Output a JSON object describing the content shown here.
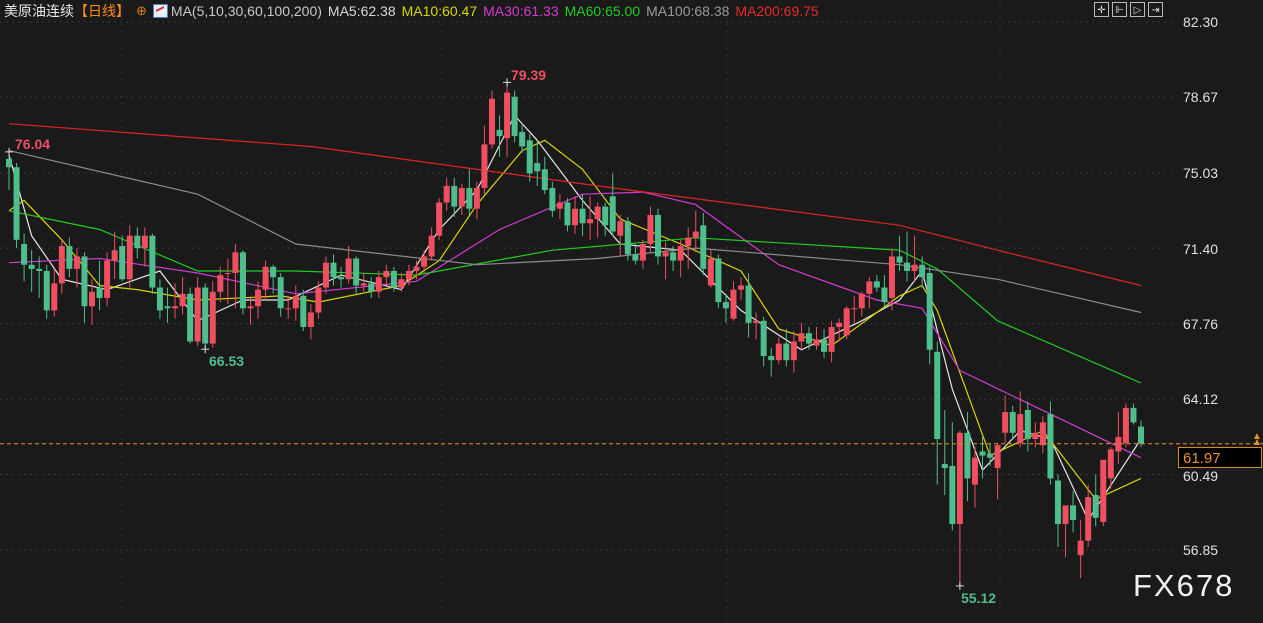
{
  "header": {
    "title": "美原油连续",
    "period": "【日线】",
    "ma_definition": "MA(5,10,30,60,100,200)",
    "ma_values": [
      {
        "label": "MA5:62.38",
        "color": "#e6e6e6"
      },
      {
        "label": "MA10:60.47",
        "color": "#d6d600"
      },
      {
        "label": "MA30:61.33",
        "color": "#d23cd2"
      },
      {
        "label": "MA60:65.00",
        "color": "#22cc22"
      },
      {
        "label": "MA100:68.38",
        "color": "#9a9a9a"
      },
      {
        "label": "MA200:69.75",
        "color": "#e52a2a"
      }
    ]
  },
  "toolbar": {
    "icons": [
      "crosshair-icon",
      "zoom-in-icon",
      "step-forward-icon",
      "jump-to-latest-icon"
    ]
  },
  "watermark": "FX678",
  "chart_data": {
    "type": "candlestick",
    "y_ticks": [
      "82.30",
      "78.67",
      "75.03",
      "71.40",
      "67.76",
      "64.12",
      "60.49",
      "56.85"
    ],
    "ylim": [
      55.0,
      82.3
    ],
    "grid": true,
    "current_price": "61.97",
    "colors": {
      "up": "#ef4f5f",
      "down": "#4ebf8c",
      "current_line": "#e8912c"
    },
    "annotations": [
      {
        "label": "76.04",
        "value": 76.04,
        "candle": 0,
        "kind": "high"
      },
      {
        "label": "66.53",
        "value": 66.53,
        "candle": 26,
        "kind": "low"
      },
      {
        "label": "79.39",
        "value": 79.39,
        "candle": 66,
        "kind": "high"
      },
      {
        "label": "55.12",
        "value": 55.12,
        "candle": 126,
        "kind": "low"
      }
    ],
    "candles_ohlc": [
      [
        75.7,
        76.04,
        74.2,
        75.3
      ],
      [
        75.3,
        75.5,
        71.4,
        71.8
      ],
      [
        71.6,
        72.1,
        69.8,
        70.6
      ],
      [
        70.6,
        71.3,
        69.3,
        70.4
      ],
      [
        70.4,
        71.0,
        69.0,
        70.3
      ],
      [
        70.3,
        70.6,
        68.0,
        68.4
      ],
      [
        68.4,
        70.4,
        68.1,
        69.7
      ],
      [
        69.7,
        71.8,
        69.2,
        71.5
      ],
      [
        71.5,
        71.9,
        70.0,
        70.4
      ],
      [
        70.4,
        71.4,
        69.5,
        71.0
      ],
      [
        71.0,
        71.2,
        67.8,
        68.6
      ],
      [
        68.6,
        69.9,
        67.7,
        69.3
      ],
      [
        69.5,
        70.8,
        68.4,
        69.0
      ],
      [
        69.0,
        71.2,
        68.6,
        70.8
      ],
      [
        70.8,
        72.2,
        69.9,
        71.3
      ],
      [
        71.5,
        72.0,
        69.8,
        69.9
      ],
      [
        69.9,
        72.5,
        69.5,
        72.0
      ],
      [
        72.0,
        72.4,
        70.9,
        71.4
      ],
      [
        71.4,
        72.4,
        70.5,
        72.0
      ],
      [
        72.0,
        72.1,
        69.2,
        69.5
      ],
      [
        69.5,
        69.9,
        68.0,
        68.4
      ],
      [
        68.6,
        69.5,
        67.8,
        68.5
      ],
      [
        68.5,
        69.7,
        68.0,
        68.6
      ],
      [
        68.6,
        70.0,
        68.2,
        69.2
      ],
      [
        69.2,
        69.5,
        66.8,
        66.9
      ],
      [
        66.9,
        70.0,
        66.7,
        69.5
      ],
      [
        69.5,
        69.7,
        66.53,
        66.8
      ],
      [
        66.8,
        69.8,
        66.6,
        69.3
      ],
      [
        69.3,
        70.5,
        68.8,
        70.1
      ],
      [
        70.2,
        70.9,
        68.7,
        70.2
      ],
      [
        70.2,
        71.6,
        68.5,
        71.2
      ],
      [
        71.2,
        71.3,
        68.2,
        68.5
      ],
      [
        68.5,
        69.0,
        67.7,
        68.6
      ],
      [
        68.6,
        69.8,
        68.0,
        69.4
      ],
      [
        69.4,
        70.8,
        68.9,
        70.5
      ],
      [
        70.5,
        70.6,
        69.2,
        70.0
      ],
      [
        70.0,
        70.2,
        68.1,
        68.5
      ],
      [
        68.5,
        69.1,
        68.0,
        68.5
      ],
      [
        68.5,
        69.6,
        67.9,
        69.1
      ],
      [
        69.1,
        69.4,
        67.4,
        67.6
      ],
      [
        67.6,
        68.7,
        67.0,
        68.3
      ],
      [
        68.3,
        69.8,
        68.0,
        69.5
      ],
      [
        69.5,
        71.0,
        69.2,
        70.7
      ],
      [
        70.7,
        71.1,
        69.6,
        70.0
      ],
      [
        70.0,
        70.5,
        69.5,
        69.9
      ],
      [
        69.9,
        71.5,
        69.7,
        70.9
      ],
      [
        70.9,
        71.0,
        69.2,
        69.6
      ],
      [
        69.6,
        70.2,
        69.3,
        69.7
      ],
      [
        69.7,
        70.0,
        69.0,
        69.3
      ],
      [
        69.3,
        70.3,
        69.0,
        70.0
      ],
      [
        70.0,
        70.6,
        69.6,
        70.3
      ],
      [
        70.3,
        70.5,
        69.3,
        69.5
      ],
      [
        69.5,
        70.2,
        69.3,
        69.9
      ],
      [
        69.9,
        70.6,
        69.6,
        70.3
      ],
      [
        70.3,
        70.8,
        69.9,
        70.5
      ],
      [
        70.5,
        71.3,
        70.2,
        71.0
      ],
      [
        71.0,
        72.4,
        70.8,
        72.0
      ],
      [
        72.0,
        73.8,
        71.8,
        73.6
      ],
      [
        73.6,
        74.8,
        73.2,
        74.4
      ],
      [
        74.4,
        74.8,
        72.9,
        73.4
      ],
      [
        73.4,
        74.5,
        73.0,
        74.3
      ],
      [
        74.3,
        75.2,
        73.0,
        73.3
      ],
      [
        73.3,
        74.6,
        72.8,
        74.3
      ],
      [
        74.3,
        77.3,
        74.0,
        76.4
      ],
      [
        76.4,
        79.0,
        76.2,
        78.6
      ],
      [
        77.1,
        77.8,
        75.8,
        76.8
      ],
      [
        76.7,
        79.39,
        75.8,
        78.9
      ],
      [
        78.7,
        79.0,
        76.5,
        76.8
      ],
      [
        77.0,
        77.4,
        76.0,
        76.3
      ],
      [
        76.6,
        76.9,
        74.6,
        75.0
      ],
      [
        75.5,
        76.6,
        74.4,
        75.1
      ],
      [
        75.2,
        75.8,
        74.0,
        74.2
      ],
      [
        74.3,
        74.6,
        72.9,
        73.2
      ],
      [
        73.3,
        74.0,
        72.8,
        73.6
      ],
      [
        73.6,
        73.8,
        72.2,
        72.5
      ],
      [
        72.5,
        73.9,
        72.1,
        73.3
      ],
      [
        73.3,
        74.0,
        72.0,
        72.6
      ],
      [
        72.6,
        73.9,
        71.8,
        72.8
      ],
      [
        72.8,
        73.6,
        71.9,
        73.4
      ],
      [
        73.4,
        73.6,
        72.0,
        72.5
      ],
      [
        73.9,
        75.0,
        72.0,
        72.2
      ],
      [
        72.0,
        73.0,
        71.0,
        72.7
      ],
      [
        72.7,
        72.9,
        70.8,
        71.1
      ],
      [
        71.1,
        71.6,
        70.6,
        70.8
      ],
      [
        70.8,
        71.8,
        70.4,
        71.6
      ],
      [
        71.6,
        73.4,
        71.2,
        73.0
      ],
      [
        73.0,
        73.3,
        70.6,
        71.0
      ],
      [
        71.0,
        71.7,
        69.9,
        71.2
      ],
      [
        71.2,
        71.5,
        70.3,
        70.8
      ],
      [
        70.8,
        71.8,
        70.0,
        71.5
      ],
      [
        71.5,
        72.4,
        70.4,
        71.9
      ],
      [
        71.9,
        73.2,
        71.2,
        72.2
      ],
      [
        72.5,
        73.1,
        70.1,
        70.4
      ],
      [
        69.6,
        71.3,
        69.5,
        70.9
      ],
      [
        70.9,
        71.1,
        68.5,
        68.8
      ],
      [
        68.8,
        69.2,
        67.8,
        68.5
      ],
      [
        68.0,
        69.8,
        67.9,
        69.4
      ],
      [
        69.4,
        70.0,
        68.9,
        69.6
      ],
      [
        69.6,
        70.2,
        67.1,
        67.8
      ],
      [
        67.8,
        68.3,
        67.0,
        67.9
      ],
      [
        67.9,
        68.1,
        65.7,
        66.2
      ],
      [
        66.2,
        66.6,
        65.2,
        66.0
      ],
      [
        66.0,
        67.1,
        65.8,
        66.8
      ],
      [
        66.8,
        67.5,
        65.7,
        66.0
      ],
      [
        66.0,
        67.4,
        65.4,
        66.9
      ],
      [
        66.9,
        67.8,
        66.5,
        67.3
      ],
      [
        67.3,
        67.6,
        66.5,
        66.8
      ],
      [
        66.7,
        67.6,
        66.5,
        67.0
      ],
      [
        67.0,
        67.5,
        66.1,
        66.4
      ],
      [
        66.4,
        67.9,
        65.9,
        67.6
      ],
      [
        67.6,
        68.0,
        66.9,
        67.8
      ],
      [
        67.2,
        68.6,
        67.0,
        68.5
      ],
      [
        68.5,
        69.1,
        67.8,
        68.5
      ],
      [
        68.5,
        69.3,
        68.1,
        69.2
      ],
      [
        69.2,
        70.0,
        68.5,
        69.8
      ],
      [
        69.8,
        70.1,
        69.3,
        69.5
      ],
      [
        69.5,
        70.1,
        68.6,
        68.8
      ],
      [
        69.0,
        71.4,
        68.4,
        71.0
      ],
      [
        71.0,
        72.0,
        70.3,
        70.7
      ],
      [
        70.7,
        72.2,
        69.8,
        70.3
      ],
      [
        70.3,
        72.0,
        69.8,
        70.6
      ],
      [
        70.6,
        71.0,
        69.5,
        70.0
      ],
      [
        70.2,
        70.5,
        65.8,
        66.5
      ],
      [
        66.4,
        66.9,
        60.0,
        62.2
      ],
      [
        61.0,
        63.6,
        59.5,
        60.8
      ],
      [
        60.9,
        63.0,
        57.8,
        58.1
      ],
      [
        58.1,
        62.6,
        55.12,
        62.5
      ],
      [
        62.5,
        63.5,
        59.2,
        60.3
      ],
      [
        60.0,
        61.8,
        58.9,
        61.3
      ],
      [
        61.6,
        62.3,
        60.3,
        61.4
      ],
      [
        61.5,
        62.0,
        60.9,
        61.3
      ],
      [
        60.8,
        62.0,
        59.3,
        61.9
      ],
      [
        62.5,
        64.3,
        62.0,
        63.5
      ],
      [
        63.5,
        63.8,
        62.2,
        62.5
      ],
      [
        62.0,
        64.5,
        61.8,
        63.4
      ],
      [
        63.6,
        64.0,
        61.6,
        62.2
      ],
      [
        62.2,
        63.0,
        61.8,
        62.5
      ],
      [
        61.9,
        63.3,
        61.5,
        63.0
      ],
      [
        63.4,
        64.0,
        60.0,
        60.3
      ],
      [
        60.2,
        60.5,
        57.0,
        58.1
      ],
      [
        58.1,
        59.0,
        56.5,
        59.0
      ],
      [
        59.0,
        59.7,
        57.7,
        58.3
      ],
      [
        56.6,
        58.3,
        55.5,
        57.3
      ],
      [
        57.3,
        60.0,
        57.0,
        59.4
      ],
      [
        59.5,
        60.5,
        58.0,
        58.4
      ],
      [
        58.2,
        61.0,
        58.0,
        61.2
      ],
      [
        60.3,
        61.8,
        59.8,
        61.7
      ],
      [
        61.6,
        63.5,
        61.0,
        62.3
      ],
      [
        62.0,
        63.9,
        61.8,
        63.7
      ],
      [
        63.7,
        63.9,
        62.9,
        63.0
      ],
      [
        62.8,
        63.1,
        61.8,
        61.97
      ]
    ],
    "moving_averages": [
      {
        "name": "MA5",
        "color": "#e6e6e6",
        "points": [
          [
            0,
            75.9
          ],
          [
            3,
            72.0
          ],
          [
            7,
            69.9
          ],
          [
            13,
            69.4
          ],
          [
            20,
            70.3
          ],
          [
            25,
            67.9
          ],
          [
            31,
            68.9
          ],
          [
            37,
            68.9
          ],
          [
            44,
            70.1
          ],
          [
            52,
            69.4
          ],
          [
            57,
            72.3
          ],
          [
            62,
            74.2
          ],
          [
            67,
            77.8
          ],
          [
            70,
            76.6
          ],
          [
            76,
            73.7
          ],
          [
            81,
            71.6
          ],
          [
            89,
            71.3
          ],
          [
            97,
            68.4
          ],
          [
            105,
            66.5
          ],
          [
            113,
            67.9
          ],
          [
            118,
            68.9
          ],
          [
            121,
            70.3
          ],
          [
            125,
            64.6
          ],
          [
            129,
            60.7
          ],
          [
            134,
            62.6
          ],
          [
            138,
            62.2
          ],
          [
            143,
            58.3
          ],
          [
            150,
            62.2
          ]
        ]
      },
      {
        "name": "MA10",
        "color": "#d6d600",
        "points": [
          [
            0,
            73.2
          ],
          [
            2,
            73.7
          ],
          [
            7,
            71.8
          ],
          [
            12,
            69.6
          ],
          [
            17,
            69.4
          ],
          [
            25,
            68.9
          ],
          [
            36,
            69.1
          ],
          [
            41,
            68.8
          ],
          [
            52,
            69.6
          ],
          [
            57,
            70.8
          ],
          [
            62,
            73.5
          ],
          [
            68,
            76.1
          ],
          [
            71,
            76.6
          ],
          [
            76,
            75.2
          ],
          [
            81,
            72.8
          ],
          [
            89,
            71.6
          ],
          [
            97,
            70.3
          ],
          [
            102,
            67.5
          ],
          [
            109,
            66.7
          ],
          [
            118,
            69.1
          ],
          [
            121,
            69.6
          ],
          [
            123,
            68.4
          ],
          [
            130,
            61.4
          ],
          [
            137,
            62.6
          ],
          [
            144,
            59.3
          ],
          [
            150,
            60.3
          ]
        ]
      },
      {
        "name": "MA30",
        "color": "#d23cd2",
        "points": [
          [
            0,
            70.7
          ],
          [
            12,
            70.9
          ],
          [
            25,
            70.2
          ],
          [
            38,
            69.2
          ],
          [
            54,
            69.8
          ],
          [
            65,
            72.3
          ],
          [
            76,
            74.0
          ],
          [
            84,
            74.1
          ],
          [
            91,
            73.5
          ],
          [
            102,
            70.6
          ],
          [
            115,
            68.9
          ],
          [
            121,
            68.5
          ],
          [
            126,
            65.5
          ],
          [
            134,
            64.1
          ],
          [
            150,
            61.3
          ]
        ]
      },
      {
        "name": "MA60",
        "color": "#22cc22",
        "points": [
          [
            0,
            73.2
          ],
          [
            12,
            72.3
          ],
          [
            25,
            70.3
          ],
          [
            38,
            70.3
          ],
          [
            54,
            70.1
          ],
          [
            72,
            71.3
          ],
          [
            91,
            71.9
          ],
          [
            118,
            71.3
          ],
          [
            123,
            70.4
          ],
          [
            131,
            67.9
          ],
          [
            150,
            64.9
          ]
        ]
      },
      {
        "name": "MA100",
        "color": "#8c8c8c",
        "points": [
          [
            0,
            76.1
          ],
          [
            25,
            74.0
          ],
          [
            38,
            71.6
          ],
          [
            62,
            70.6
          ],
          [
            78,
            70.9
          ],
          [
            91,
            71.4
          ],
          [
            118,
            70.6
          ],
          [
            131,
            69.9
          ],
          [
            150,
            68.3
          ]
        ]
      },
      {
        "name": "MA200",
        "color": "#e02424",
        "points": [
          [
            0,
            77.4
          ],
          [
            40,
            76.3
          ],
          [
            78,
            74.4
          ],
          [
            118,
            72.5
          ],
          [
            131,
            71.3
          ],
          [
            150,
            69.6
          ]
        ]
      }
    ]
  }
}
